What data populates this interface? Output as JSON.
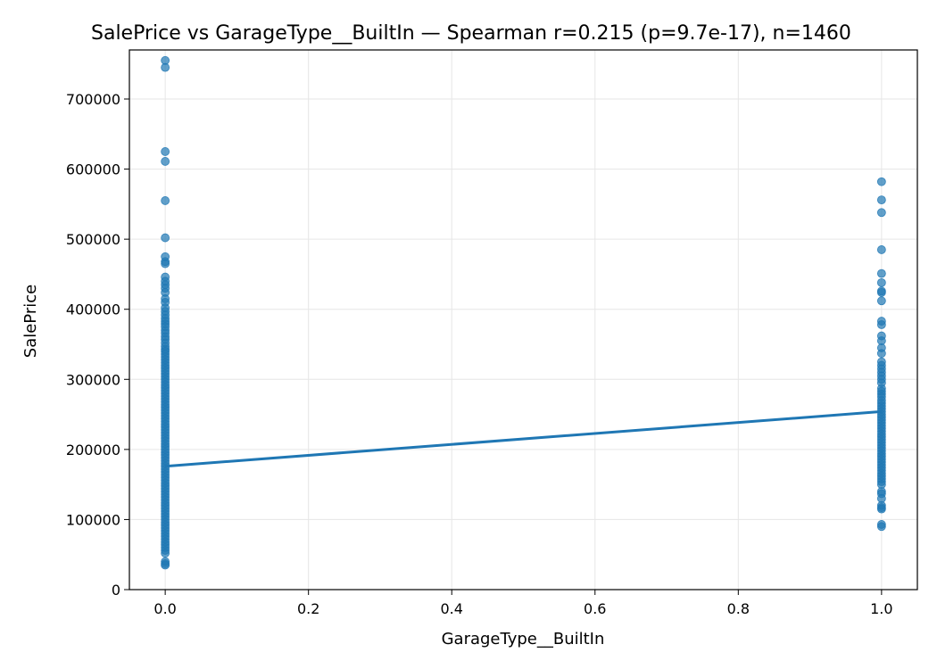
{
  "chart_data": {
    "type": "scatter",
    "title": "SalePrice vs GarageType__BuiltIn — Spearman r=0.215 (p=9.7e-17), n=1460",
    "xlabel": "GarageType__BuiltIn",
    "ylabel": "SalePrice",
    "xlim": [
      -0.05,
      1.05
    ],
    "ylim": [
      0,
      770000
    ],
    "xticks": [
      0.0,
      0.2,
      0.4,
      0.6,
      0.8,
      1.0
    ],
    "xtick_labels": [
      "0.0",
      "0.2",
      "0.4",
      "0.6",
      "0.8",
      "1.0"
    ],
    "yticks": [
      0,
      100000,
      200000,
      300000,
      400000,
      500000,
      600000,
      700000
    ],
    "ytick_labels": [
      "0",
      "100000",
      "200000",
      "300000",
      "400000",
      "500000",
      "600000",
      "700000"
    ],
    "grid": true,
    "point_color": "#1f77b4",
    "series": [
      {
        "x": 0,
        "y": [
          755000,
          745000,
          625000,
          611000,
          555000,
          502000,
          475000,
          468000,
          465000,
          446000,
          440000,
          435000,
          430000,
          424000,
          415000,
          410000,
          402000,
          397000,
          392000,
          387000,
          383000,
          379000,
          375000,
          370000,
          366000,
          361000,
          357000,
          352000,
          347000,
          343000,
          340000,
          336000,
          332000,
          328000,
          324000,
          320000,
          316000,
          312000,
          308000,
          304000,
          300000,
          296000,
          292000,
          288000,
          284000,
          280000,
          276000,
          272000,
          268000,
          264000,
          260000,
          256000,
          252000,
          248000,
          244000,
          240000,
          236000,
          232000,
          228000,
          224000,
          220000,
          216000,
          212000,
          208000,
          204000,
          200000,
          196000,
          192000,
          188000,
          184000,
          180000,
          176000,
          172000,
          168000,
          164000,
          160000,
          156000,
          152000,
          148000,
          144000,
          140000,
          136000,
          132000,
          128000,
          124000,
          120000,
          116000,
          112000,
          108000,
          104000,
          100000,
          96000,
          92000,
          88000,
          84000,
          80000,
          76000,
          72000,
          68000,
          64000,
          60000,
          56000,
          52000,
          40000,
          37000,
          35000
        ]
      },
      {
        "x": 1,
        "y": [
          582000,
          556000,
          538000,
          485000,
          451000,
          438000,
          426000,
          424000,
          412000,
          383000,
          378000,
          362000,
          355000,
          345000,
          337000,
          325000,
          320000,
          315000,
          310000,
          305000,
          300000,
          295000,
          287000,
          283000,
          279000,
          275000,
          270000,
          266000,
          262000,
          258000,
          254000,
          250000,
          246000,
          242000,
          238000,
          234000,
          230000,
          226000,
          222000,
          218000,
          214000,
          210000,
          206000,
          202000,
          198000,
          194000,
          190000,
          186000,
          182000,
          178000,
          174000,
          170000,
          166000,
          162000,
          158000,
          154000,
          150000,
          140000,
          137000,
          130000,
          120000,
          117000,
          115000,
          93000,
          90000
        ]
      }
    ],
    "trend_line": {
      "x": [
        0,
        1
      ],
      "y": [
        176000,
        254000
      ]
    }
  }
}
